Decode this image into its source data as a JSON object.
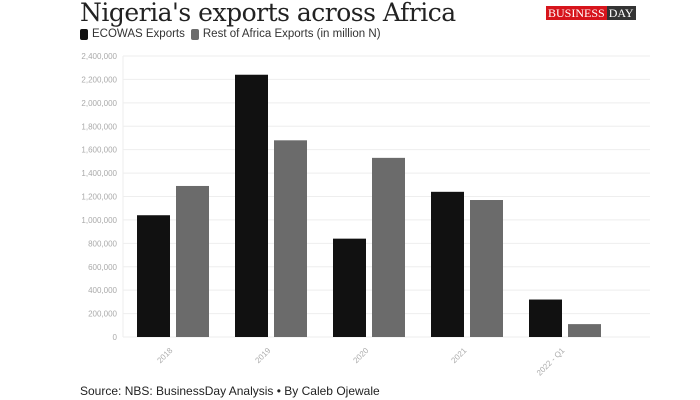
{
  "chart_data": {
    "type": "bar",
    "title": "Nigeria's exports across Africa",
    "categories": [
      "2018",
      "2019",
      "2020",
      "2021",
      "2022 - Q1"
    ],
    "series": [
      {
        "name": "ECOWAS Exports",
        "color": "#111111",
        "values": [
          1040000,
          2240000,
          840000,
          1240000,
          320000
        ]
      },
      {
        "name": "Rest of Africa Exports (in million N)",
        "color": "#6b6b6b",
        "values": [
          1290000,
          1680000,
          1530000,
          1170000,
          110000
        ]
      }
    ],
    "ylim": [
      0,
      2400000
    ],
    "yticks": [
      "0",
      "200,000",
      "400,000",
      "600,000",
      "800,000",
      "1,000,000",
      "1,200,000",
      "1,400,000",
      "1,600,000",
      "1,800,000",
      "2,000,000",
      "2,200,000",
      "2,400,000"
    ],
    "grid": true,
    "legend": "top-left",
    "xlabel": "",
    "ylabel": ""
  },
  "logo": {
    "left": "BUSINESS",
    "right": "DAY"
  },
  "source": "Source: NBS: BusinessDay Analysis • By Caleb Ojewale"
}
